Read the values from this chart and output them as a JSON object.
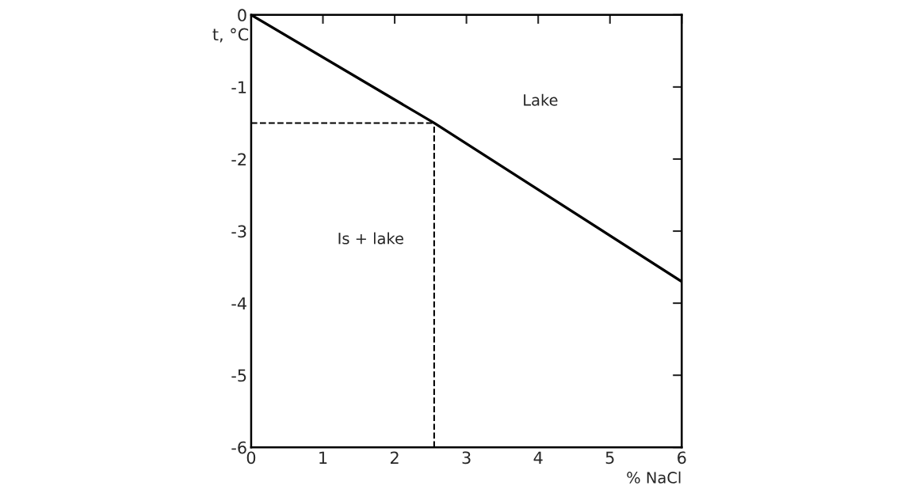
{
  "chart_data": {
    "type": "line",
    "x": [
      0,
      2.55,
      6
    ],
    "series": [
      {
        "color": "#000000",
        "values": [
          0,
          -1.5,
          -3.7
        ]
      }
    ],
    "xlabel": "% NaCl",
    "ylabel": "t, °C",
    "xlim": [
      0,
      6
    ],
    "ylim": [
      -6,
      0
    ],
    "xticks": [
      0,
      1,
      2,
      3,
      4,
      5,
      6
    ],
    "yticks": [
      -6,
      -5,
      -4,
      -3,
      -2,
      -1,
      0
    ],
    "ref_lines": [
      {
        "axis": "x",
        "value": 2.55,
        "line_style": "dashed",
        "color": "#000000"
      },
      {
        "axis": "y",
        "value": -1.5,
        "line_style": "dashed",
        "color": "#000000"
      }
    ],
    "annotations": [
      "Lake",
      "Is + lake"
    ],
    "grid": false,
    "marker": "none",
    "line_style": "solid"
  }
}
